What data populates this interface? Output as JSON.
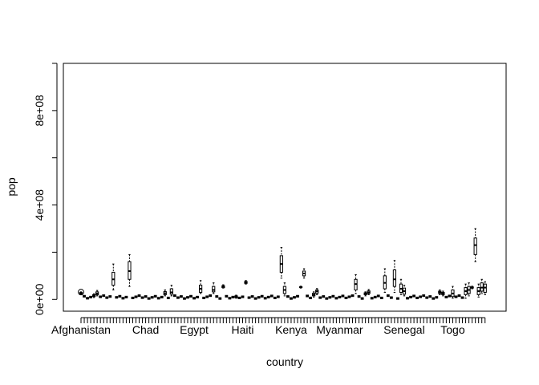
{
  "chart_data": {
    "type": "boxplot",
    "title": "",
    "xlabel": "country",
    "ylabel": "pop",
    "ylim": [
      -50000000,
      1000000000
    ],
    "y_ticks": [
      {
        "value": 0,
        "label": "0e+00"
      },
      {
        "value": 400000000,
        "label": "4e+08"
      },
      {
        "value": 800000000,
        "label": "8e+08"
      }
    ],
    "x_tick_labels": [
      {
        "index": 1,
        "label": "Afghanistan"
      },
      {
        "index": 21,
        "label": "Chad"
      },
      {
        "index": 36,
        "label": "Egypt"
      },
      {
        "index": 51,
        "label": "Haiti"
      },
      {
        "index": 66,
        "label": "Kenya"
      },
      {
        "index": 81,
        "label": "Myanmar"
      },
      {
        "index": 101,
        "label": "Senegal"
      },
      {
        "index": 116,
        "label": "Togo"
      }
    ],
    "n_categories": 126,
    "boxes": [
      {
        "category": 1,
        "min": 20000000,
        "q1": 22000000,
        "median": 26000000,
        "q3": 30000000,
        "max": 32000000
      },
      {
        "category": 5,
        "min": 8000000,
        "q1": 12000000,
        "median": 16000000,
        "q3": 20000000,
        "max": 24000000
      },
      {
        "category": 6,
        "min": 15000000,
        "q1": 20000000,
        "median": 25000000,
        "q3": 32000000,
        "max": 38000000
      },
      {
        "category": 11,
        "min": 40000000,
        "q1": 60000000,
        "median": 85000000,
        "q3": 115000000,
        "max": 150000000
      },
      {
        "category": 16,
        "min": 55000000,
        "q1": 85000000,
        "median": 120000000,
        "q3": 160000000,
        "max": 190000000
      },
      {
        "category": 27,
        "min": 15000000,
        "q1": 20000000,
        "median": 26000000,
        "q3": 33000000,
        "max": 40000000
      },
      {
        "category": 29,
        "min": 15000000,
        "q1": 22000000,
        "median": 30000000,
        "q3": 45000000,
        "max": 60000000
      },
      {
        "category": 38,
        "min": 25000000,
        "q1": 30000000,
        "median": 45000000,
        "q3": 60000000,
        "max": 80000000
      },
      {
        "category": 42,
        "min": 25000000,
        "q1": 32000000,
        "median": 40000000,
        "q3": 55000000,
        "max": 70000000
      },
      {
        "category": 45,
        "min": 48000000,
        "q1": 50000000,
        "median": 55000000,
        "q3": 58000000,
        "max": 62000000
      },
      {
        "category": 49,
        "min": 5000000,
        "q1": 8000000,
        "median": 12000000,
        "q3": 15000000,
        "max": 18000000
      },
      {
        "category": 52,
        "min": 65000000,
        "q1": 68000000,
        "median": 72000000,
        "q3": 76000000,
        "max": 80000000
      },
      {
        "category": 63,
        "min": 90000000,
        "q1": 115000000,
        "median": 150000000,
        "q3": 185000000,
        "max": 220000000
      },
      {
        "category": 64,
        "min": 15000000,
        "q1": 25000000,
        "median": 40000000,
        "q3": 55000000,
        "max": 70000000
      },
      {
        "category": 69,
        "min": 48000000,
        "q1": 50000000,
        "median": 52000000,
        "q3": 54000000,
        "max": 56000000
      },
      {
        "category": 70,
        "min": 90000000,
        "q1": 100000000,
        "median": 110000000,
        "q3": 120000000,
        "max": 130000000
      },
      {
        "category": 73,
        "min": 10000000,
        "q1": 15000000,
        "median": 20000000,
        "q3": 26000000,
        "max": 32000000
      },
      {
        "category": 74,
        "min": 20000000,
        "q1": 26000000,
        "median": 34000000,
        "q3": 40000000,
        "max": 46000000
      },
      {
        "category": 86,
        "min": 25000000,
        "q1": 40000000,
        "median": 65000000,
        "q3": 85000000,
        "max": 105000000
      },
      {
        "category": 89,
        "min": 15000000,
        "q1": 20000000,
        "median": 24000000,
        "q3": 28000000,
        "max": 32000000
      },
      {
        "category": 90,
        "min": 20000000,
        "q1": 25000000,
        "median": 30000000,
        "q3": 36000000,
        "max": 42000000
      },
      {
        "category": 95,
        "min": 30000000,
        "q1": 45000000,
        "median": 70000000,
        "q3": 100000000,
        "max": 130000000
      },
      {
        "category": 98,
        "min": 30000000,
        "q1": 55000000,
        "median": 85000000,
        "q3": 125000000,
        "max": 165000000
      },
      {
        "category": 100,
        "min": 20000000,
        "q1": 30000000,
        "median": 45000000,
        "q3": 65000000,
        "max": 85000000
      },
      {
        "category": 101,
        "min": 15000000,
        "q1": 22000000,
        "median": 35000000,
        "q3": 48000000,
        "max": 60000000
      },
      {
        "category": 112,
        "min": 20000000,
        "q1": 25000000,
        "median": 30000000,
        "q3": 35000000,
        "max": 40000000
      },
      {
        "category": 113,
        "min": 15000000,
        "q1": 20000000,
        "median": 25000000,
        "q3": 30000000,
        "max": 35000000
      },
      {
        "category": 116,
        "min": 5000000,
        "q1": 12000000,
        "median": 25000000,
        "q3": 40000000,
        "max": 55000000
      },
      {
        "category": 120,
        "min": 5000000,
        "q1": 20000000,
        "median": 35000000,
        "q3": 50000000,
        "max": 65000000
      },
      {
        "category": 121,
        "min": 15000000,
        "q1": 25000000,
        "median": 40000000,
        "q3": 55000000,
        "max": 70000000
      },
      {
        "category": 122,
        "min": 45000000,
        "q1": 48000000,
        "median": 50000000,
        "q3": 53000000,
        "max": 56000000
      },
      {
        "category": 123,
        "min": 160000000,
        "q1": 190000000,
        "median": 230000000,
        "q3": 260000000,
        "max": 300000000
      },
      {
        "category": 124,
        "min": 10000000,
        "q1": 20000000,
        "median": 35000000,
        "q3": 50000000,
        "max": 65000000
      },
      {
        "category": 125,
        "min": 25000000,
        "q1": 35000000,
        "median": 50000000,
        "q3": 70000000,
        "max": 85000000
      },
      {
        "category": 126,
        "min": 20000000,
        "q1": 30000000,
        "median": 50000000,
        "q3": 65000000,
        "max": 75000000
      }
    ],
    "outlier_points": [
      {
        "category": 1,
        "value": 31000000
      }
    ],
    "grid": false,
    "legend": "none"
  },
  "colors": {
    "background": "#ffffff",
    "ink": "#000000"
  }
}
